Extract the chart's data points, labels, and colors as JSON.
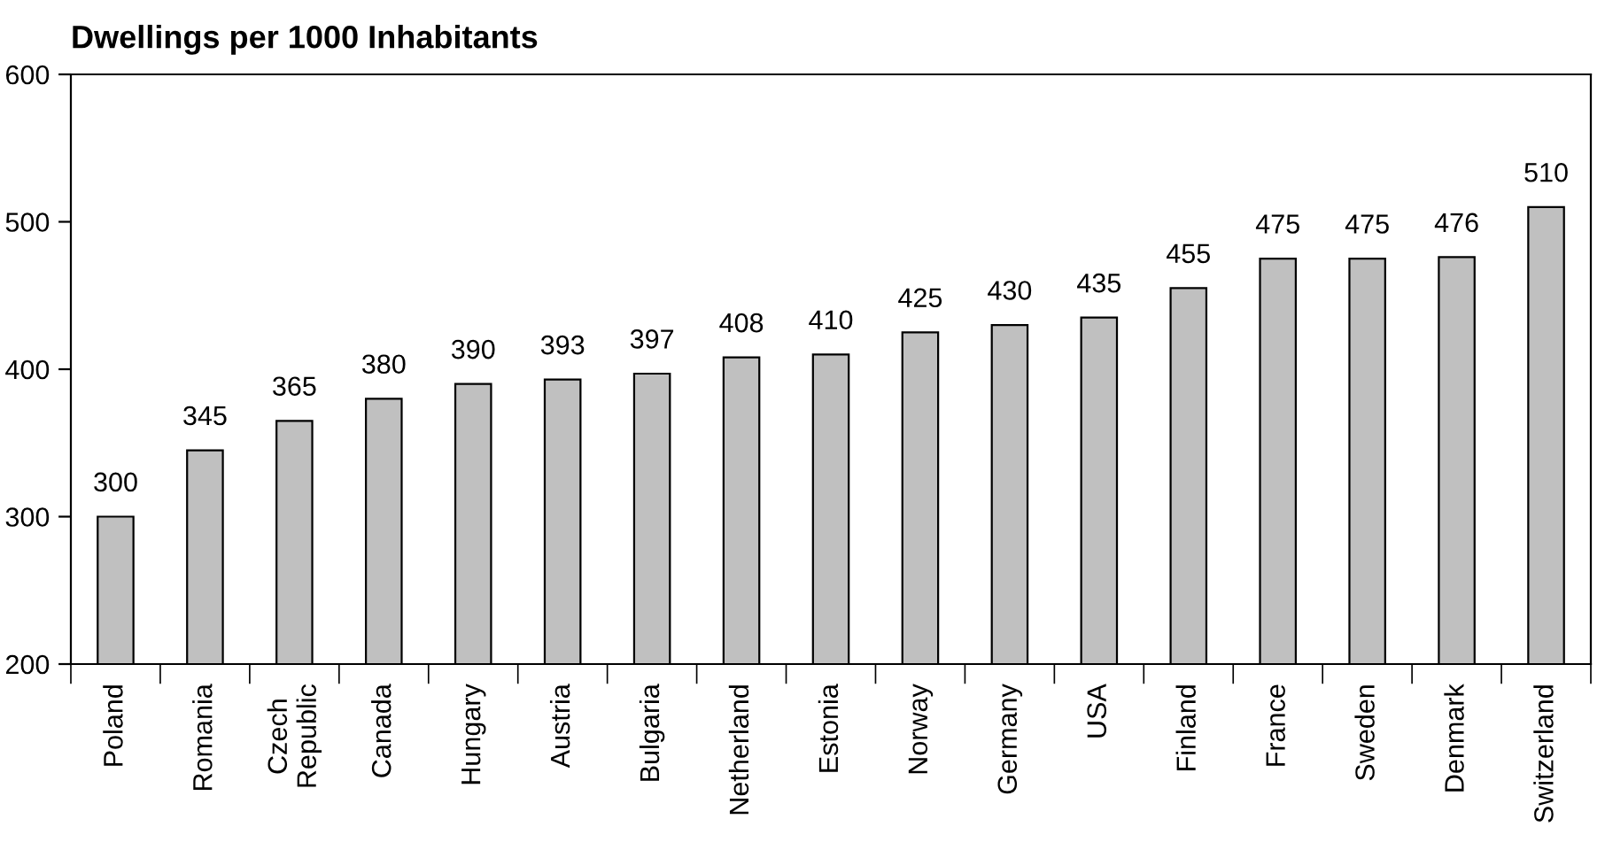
{
  "chart_data": {
    "type": "bar",
    "title": "Dwellings per 1000 Inhabitants",
    "categories": [
      "Poland",
      "Romania",
      "Czech\nRepublic",
      "Canada",
      "Hungary",
      "Austria",
      "Bulgaria",
      "Netherland",
      "Estonia",
      "Norway",
      "Germany",
      "USA",
      "Finland",
      "France",
      "Sweden",
      "Denmark",
      "Switzerland"
    ],
    "values": [
      300,
      345,
      365,
      380,
      390,
      393,
      397,
      408,
      410,
      425,
      430,
      435,
      455,
      475,
      475,
      476,
      510
    ],
    "color": "#c0c0c0",
    "ylim": [
      200,
      600
    ],
    "yticks": [
      200,
      300,
      400,
      500,
      600
    ],
    "grid": false,
    "data_labels": true
  }
}
